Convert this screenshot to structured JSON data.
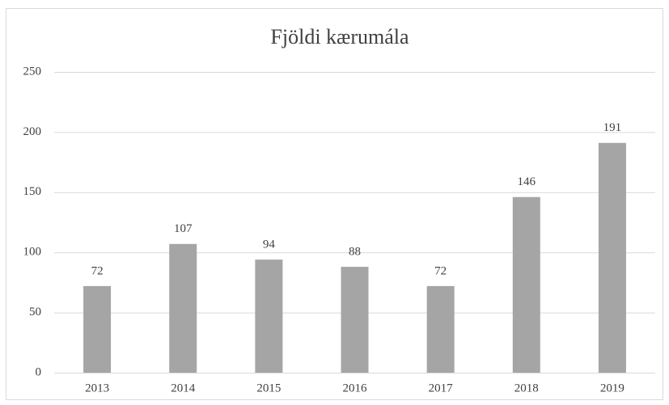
{
  "chart_data": {
    "type": "bar",
    "title": "Fjöldi kærumála",
    "categories": [
      "2013",
      "2014",
      "2015",
      "2016",
      "2017",
      "2018",
      "2019"
    ],
    "values": [
      72,
      107,
      94,
      88,
      72,
      146,
      191
    ],
    "color": "#a5a5a6",
    "ylim": [
      0,
      250
    ],
    "yticks": [
      0,
      50,
      100,
      150,
      200,
      250
    ],
    "grid": true
  }
}
